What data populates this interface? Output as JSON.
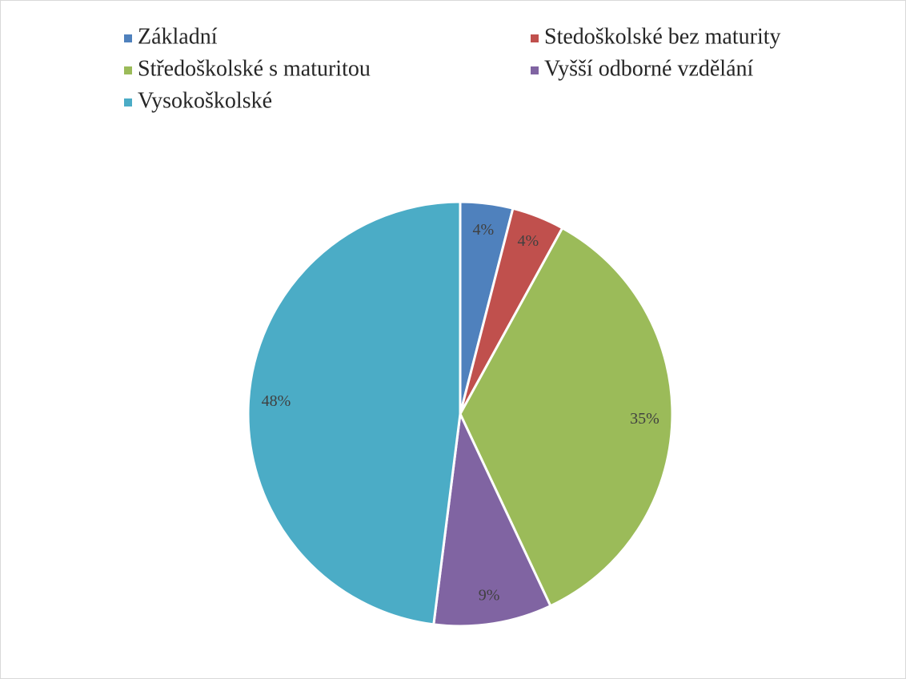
{
  "chart_data": {
    "type": "pie",
    "categories": [
      "Základní",
      "Stedoškolské bez maturity",
      "Středoškolské s maturitou",
      "Vyšší odborné vzdělání",
      "Vysokoškolské"
    ],
    "values": [
      4,
      4,
      35,
      9,
      48
    ],
    "value_labels": [
      "4%",
      "4%",
      "35%",
      "9%",
      "48%"
    ],
    "colors": [
      "#4f81bd",
      "#c0504d",
      "#9bbb59",
      "#8064a2",
      "#4bacc6"
    ],
    "legend": "top"
  }
}
